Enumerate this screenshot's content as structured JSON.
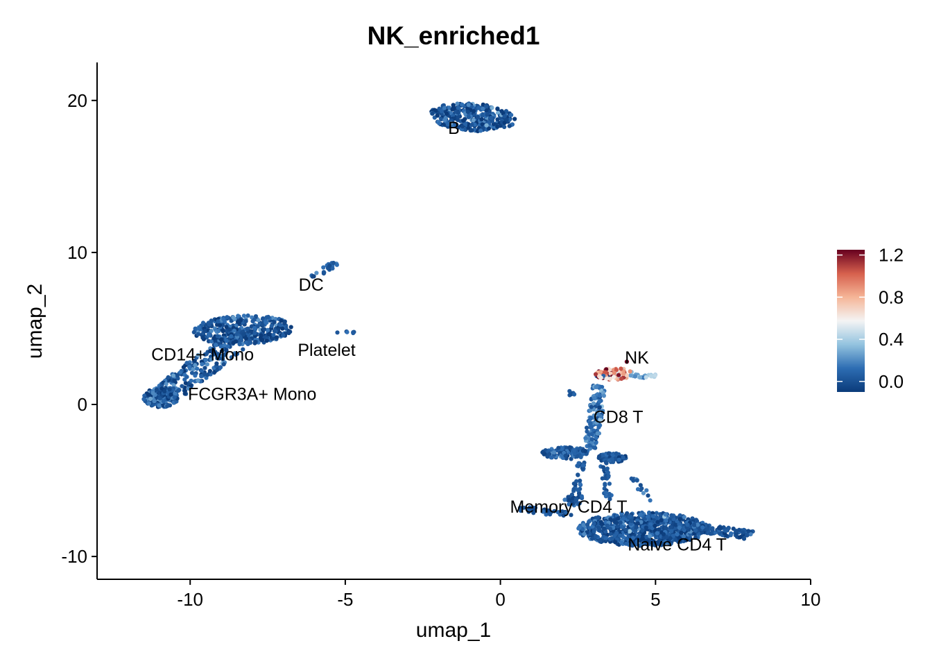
{
  "chart_data": {
    "type": "scatter",
    "title": "NK_enriched1",
    "xlabel": "umap_1",
    "ylabel": "umap_2",
    "xlim": [
      -13.0,
      10.0
    ],
    "ylim": [
      -11.5,
      22.5
    ],
    "x_ticks": [
      -10,
      -5,
      0,
      5,
      10
    ],
    "x_tick_labels": [
      "-10",
      "-5",
      "0",
      "5",
      "10"
    ],
    "y_ticks": [
      -10,
      0,
      10,
      20
    ],
    "y_tick_labels": [
      "-10",
      "0",
      "10",
      "20"
    ],
    "grid": false,
    "legend": {
      "placement": "right",
      "type": "colorbar",
      "range": [
        -0.1,
        1.25
      ],
      "ticks": [
        0.0,
        0.4,
        0.8,
        1.2
      ],
      "tick_labels": [
        "0.0",
        "0.4",
        "0.8",
        "1.2"
      ],
      "colors": [
        "#0b3b7a",
        "#2d6db3",
        "#93c3df",
        "#f4f4f4",
        "#f5b597",
        "#d6604d",
        "#67001f"
      ]
    },
    "clusters": [
      {
        "label": "B",
        "label_x": -1.5,
        "label_y": 18.2,
        "value": 0.02
      },
      {
        "label": "DC",
        "label_x": -6.1,
        "label_y": 7.9,
        "value": 0.02
      },
      {
        "label": "Platelet",
        "label_x": -5.6,
        "label_y": 3.6,
        "value": 0.02
      },
      {
        "label": "CD14+ Mono",
        "label_x": -9.6,
        "label_y": 3.3,
        "value": 0.02
      },
      {
        "label": "FCGR3A+ Mono",
        "label_x": -8.0,
        "label_y": 0.7,
        "value": 0.02
      },
      {
        "label": "NK",
        "label_x": 4.4,
        "label_y": 3.1,
        "value": 0.75
      },
      {
        "label": "CD8 T",
        "label_x": 3.8,
        "label_y": -0.8,
        "value": 0.1
      },
      {
        "label": "Memory CD4 T",
        "label_x": 2.2,
        "label_y": -6.7,
        "value": 0.03
      },
      {
        "label": "Naive CD4 T",
        "label_x": 5.7,
        "label_y": -9.2,
        "value": 0.02
      }
    ],
    "point_groups": [
      {
        "type": "ellipse",
        "cx": -0.9,
        "cy": 18.9,
        "rx": 1.4,
        "ry": 0.9,
        "angle": -0.22,
        "n": 320,
        "value": 0.02,
        "spread": 0.12
      },
      {
        "type": "line",
        "x0": -6.1,
        "y0": 8.3,
        "x1": -5.3,
        "y1": 9.3,
        "w": 0.15,
        "n": 22,
        "value": 0.02,
        "spread": 0.1
      },
      {
        "type": "ellipse",
        "cx": -4.85,
        "cy": 4.75,
        "rx": 0.15,
        "ry": 0.08,
        "angle": 0,
        "n": 5,
        "value": 0.05,
        "spread": 0.1
      },
      {
        "type": "ellipse",
        "cx": -5.25,
        "cy": 4.75,
        "rx": 0.05,
        "ry": 0.05,
        "angle": 0,
        "n": 1,
        "value": 0.05,
        "spread": 0.05
      },
      {
        "type": "ellipse",
        "cx": -8.3,
        "cy": 4.9,
        "rx": 1.6,
        "ry": 0.95,
        "angle": 0.1,
        "n": 380,
        "value": 0.02,
        "spread": 0.12
      },
      {
        "type": "line",
        "x0": -10.7,
        "y0": 0.8,
        "x1": -8.7,
        "y1": 3.9,
        "w": 0.55,
        "n": 170,
        "value": 0.02,
        "spread": 0.12
      },
      {
        "type": "ellipse",
        "cx": -10.95,
        "cy": 0.45,
        "rx": 0.55,
        "ry": 0.65,
        "angle": 0,
        "n": 170,
        "value": 0.02,
        "spread": 0.12
      },
      {
        "type": "ellipse",
        "cx": 3.7,
        "cy": 2.0,
        "rx": 0.65,
        "ry": 0.38,
        "angle": 0,
        "n": 95,
        "value": 0.78,
        "spread": 0.32
      },
      {
        "type": "ellipse",
        "cx": 4.6,
        "cy": 1.9,
        "rx": 0.45,
        "ry": 0.15,
        "angle": 0,
        "n": 20,
        "value": 0.32,
        "spread": 0.12
      },
      {
        "type": "ellipse",
        "cx": 2.3,
        "cy": 0.75,
        "rx": 0.12,
        "ry": 0.18,
        "angle": 0,
        "n": 7,
        "value": 0.03,
        "spread": 0.05
      },
      {
        "type": "line",
        "x0": 3.2,
        "y0": 1.3,
        "x1": 2.9,
        "y1": -3.0,
        "w": 0.22,
        "n": 130,
        "value": 0.12,
        "spread": 0.09
      },
      {
        "type": "ellipse",
        "cx": 2.1,
        "cy": -3.2,
        "rx": 0.75,
        "ry": 0.4,
        "angle": 0,
        "n": 110,
        "value": 0.05,
        "spread": 0.08
      },
      {
        "type": "ellipse",
        "cx": 3.6,
        "cy": -3.5,
        "rx": 0.45,
        "ry": 0.3,
        "angle": 0,
        "n": 60,
        "value": 0.03,
        "spread": 0.06
      },
      {
        "type": "line",
        "x0": 2.6,
        "y0": -3.8,
        "x1": 2.4,
        "y1": -6.2,
        "w": 0.12,
        "n": 30,
        "value": 0.03,
        "spread": 0.05
      },
      {
        "type": "line",
        "x0": 3.3,
        "y0": -3.8,
        "x1": 3.5,
        "y1": -6.4,
        "w": 0.12,
        "n": 30,
        "value": 0.03,
        "spread": 0.05
      },
      {
        "type": "line",
        "x0": 4.2,
        "y0": -4.8,
        "x1": 4.9,
        "y1": -6.3,
        "w": 0.12,
        "n": 14,
        "value": 0.06,
        "spread": 0.08
      },
      {
        "type": "ellipse",
        "cx": 4.6,
        "cy": -8.2,
        "rx": 2.1,
        "ry": 1.1,
        "angle": 0,
        "n": 760,
        "value": 0.02,
        "spread": 0.1
      },
      {
        "type": "line",
        "x0": 6.0,
        "y0": -8.0,
        "x1": 8.1,
        "y1": -8.6,
        "w": 0.3,
        "n": 110,
        "value": 0.02,
        "spread": 0.07
      },
      {
        "type": "line",
        "x0": 0.6,
        "y0": -6.9,
        "x1": 2.3,
        "y1": -7.2,
        "w": 0.2,
        "n": 35,
        "value": 0.02,
        "spread": 0.05
      },
      {
        "type": "ellipse",
        "cx": 2.4,
        "cy": -6.3,
        "rx": 0.35,
        "ry": 0.35,
        "angle": 0,
        "n": 25,
        "value": 0.03,
        "spread": 0.06
      },
      {
        "type": "ellipse",
        "cx": 4.05,
        "cy": 2.8,
        "rx": 0.03,
        "ry": 0.03,
        "angle": 0,
        "n": 1,
        "value": 1.25,
        "spread": 0
      }
    ]
  }
}
